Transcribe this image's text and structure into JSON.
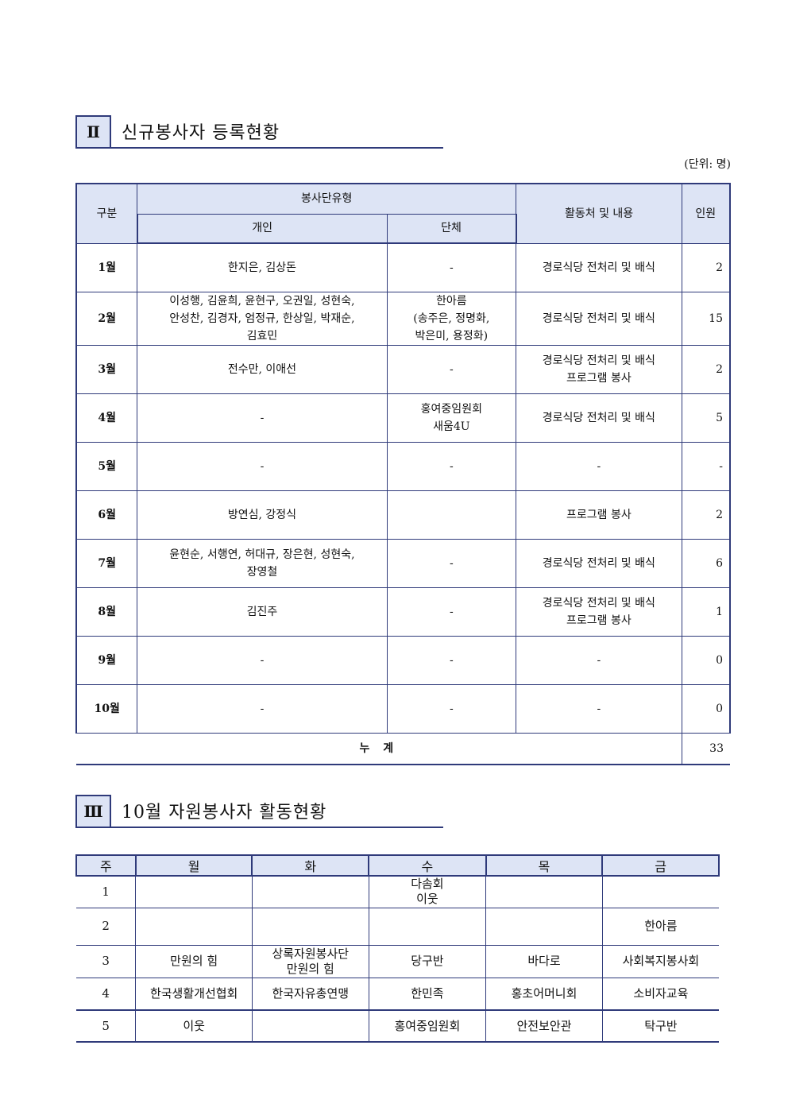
{
  "section2": {
    "num": "Ⅱ",
    "title": "신규봉사자 등록현황",
    "unit": "(단위: 명)",
    "headers": {
      "category": "구분",
      "type": "봉사단유형",
      "individual": "개인",
      "group": "단체",
      "place": "활동처 및 내용",
      "count": "인원"
    },
    "rows": [
      {
        "month": "1월",
        "individual": "한지은, 김상돈",
        "group": "-",
        "place": "경로식당 전처리 및 배식",
        "count": "2"
      },
      {
        "month": "2월",
        "individual": "이성행, 김윤희, 윤현구, 오권일, 성현숙,\n안성찬, 김경자, 엄정규, 한상일, 박재순,\n김효민",
        "group": "한아름\n(송주은, 정명화,\n박은미, 용정화)",
        "place": "경로식당 전처리 및 배식",
        "count": "15"
      },
      {
        "month": "3월",
        "individual": "전수만, 이애선",
        "group": "-",
        "place": "경로식당 전처리 및 배식\n프로그램 봉사",
        "count": "2"
      },
      {
        "month": "4월",
        "individual": "-",
        "group": "홍여중임원회\n새움4U",
        "place": "경로식당 전처리 및 배식",
        "count": "5"
      },
      {
        "month": "5월",
        "individual": "-",
        "group": "-",
        "place": "-",
        "count": "-"
      },
      {
        "month": "6월",
        "individual": "방연심, 강정식",
        "group": "",
        "place": "프로그램 봉사",
        "count": "2"
      },
      {
        "month": "7월",
        "individual": "윤현순, 서행연, 허대규, 장은현, 성현숙,\n장영철",
        "group": "-",
        "place": "경로식당 전처리 및 배식",
        "count": "6"
      },
      {
        "month": "8월",
        "individual": "김진주",
        "group": "-",
        "place": "경로식당 전처리 및 배식\n프로그램 봉사",
        "count": "1"
      },
      {
        "month": "9월",
        "individual": "-",
        "group": "-",
        "place": "-",
        "count": "0"
      },
      {
        "month": "10월",
        "individual": "-",
        "group": "-",
        "place": "-",
        "count": "0"
      }
    ],
    "total_label": "누  계",
    "total": "33"
  },
  "section3": {
    "num": "Ⅲ",
    "title": "10월 자원봉사자 활동현황",
    "headers": [
      "주",
      "월",
      "화",
      "수",
      "목",
      "금"
    ],
    "rows": [
      [
        "1",
        "",
        "",
        "다솜회\n이웃",
        "",
        ""
      ],
      [
        "2",
        "",
        "",
        "",
        "",
        "한아름"
      ],
      [
        "3",
        "만원의 힘",
        "상록자원봉사단\n만원의 힘",
        "당구반",
        "바다로",
        "사회복지봉사회"
      ],
      [
        "4",
        "한국생활개선협회",
        "한국자유총연맹",
        "한민족",
        "홍초어머니회",
        "소비자교육"
      ],
      [
        "5",
        "이웃",
        "",
        "홍여중임원회",
        "안전보안관",
        "탁구반"
      ]
    ]
  }
}
